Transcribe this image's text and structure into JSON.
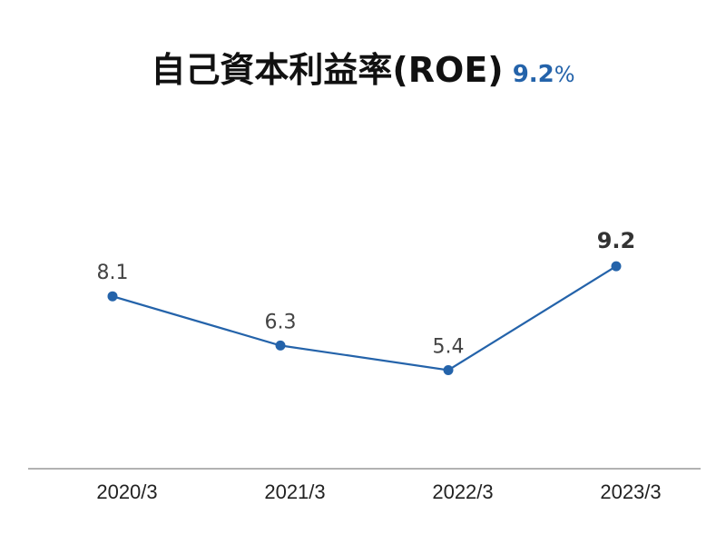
{
  "title": {
    "main": "自己資本利益率(ROE)",
    "value": "9.2",
    "unit": "%"
  },
  "colors": {
    "line": "#2463aa",
    "accent": "#2463aa",
    "axis": "#999999"
  },
  "chart_data": {
    "type": "line",
    "categories": [
      "2020/3",
      "2021/3",
      "2022/3",
      "2023/3"
    ],
    "values": [
      8.1,
      6.3,
      5.4,
      9.2
    ],
    "data_labels": [
      "8.1",
      "6.3",
      "5.4",
      "9.2"
    ],
    "highlight_index": 3,
    "ylim": [
      0,
      12
    ],
    "grid": false,
    "xlabel": "",
    "ylabel": ""
  }
}
